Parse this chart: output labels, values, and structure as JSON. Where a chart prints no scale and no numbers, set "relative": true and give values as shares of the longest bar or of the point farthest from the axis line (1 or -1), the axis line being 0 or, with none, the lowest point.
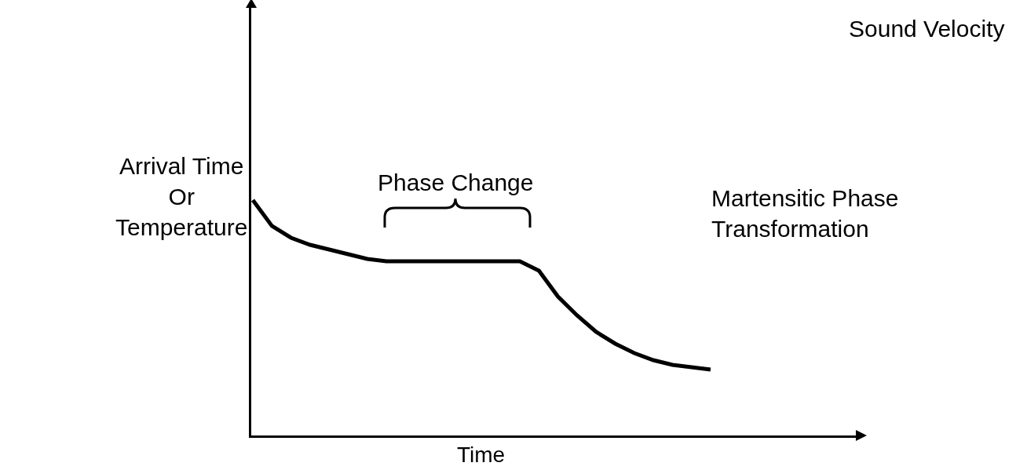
{
  "chart_data": {
    "type": "line",
    "relative": true,
    "color": "#000000",
    "xlabel": "Time",
    "ylabel": "Arrival Time\nOr\nTemperature",
    "categories": [
      null,
      null,
      null,
      null,
      null,
      null,
      null,
      null,
      null,
      null,
      null,
      null,
      null,
      null,
      null,
      null,
      null,
      null,
      null,
      null,
      null,
      null,
      null,
      null,
      null
    ],
    "values": [
      1.0,
      0.89,
      0.84,
      0.81,
      0.79,
      0.77,
      0.75,
      0.74,
      0.74,
      0.74,
      0.74,
      0.74,
      0.74,
      0.74,
      0.74,
      0.7,
      0.59,
      0.51,
      0.44,
      0.39,
      0.35,
      0.32,
      0.3,
      0.29,
      0.28
    ],
    "annotations": [
      "Phase Change",
      "Martensitic Phase\nTransformation",
      "Sound Velocity"
    ],
    "marker": "none",
    "line_style": "solid"
  }
}
